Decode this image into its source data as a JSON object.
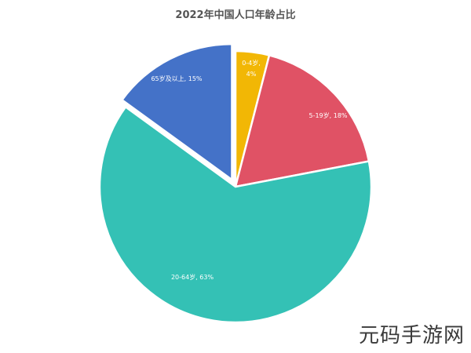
{
  "chart_data": {
    "type": "pie",
    "title": "2022年中国人口年龄占比",
    "slices": [
      {
        "label": "0-4岁, 4%",
        "category": "0-4岁",
        "value": 4,
        "color": "#F2B705",
        "exploded": false
      },
      {
        "label": "5-19岁, 18%",
        "category": "5-19岁",
        "value": 18,
        "color": "#E05265",
        "exploded": false
      },
      {
        "label": "20-64岁, 63%",
        "category": "20-64岁",
        "value": 63,
        "color": "#34C1B5",
        "exploded": false
      },
      {
        "label": "65岁及以上, 15%",
        "category": "65岁及以上",
        "value": 15,
        "color": "#4472C8",
        "exploded": true
      }
    ],
    "start_angle": "12 o'clock",
    "direction": "clockwise",
    "legend": "none"
  },
  "watermark": "元码手游网"
}
